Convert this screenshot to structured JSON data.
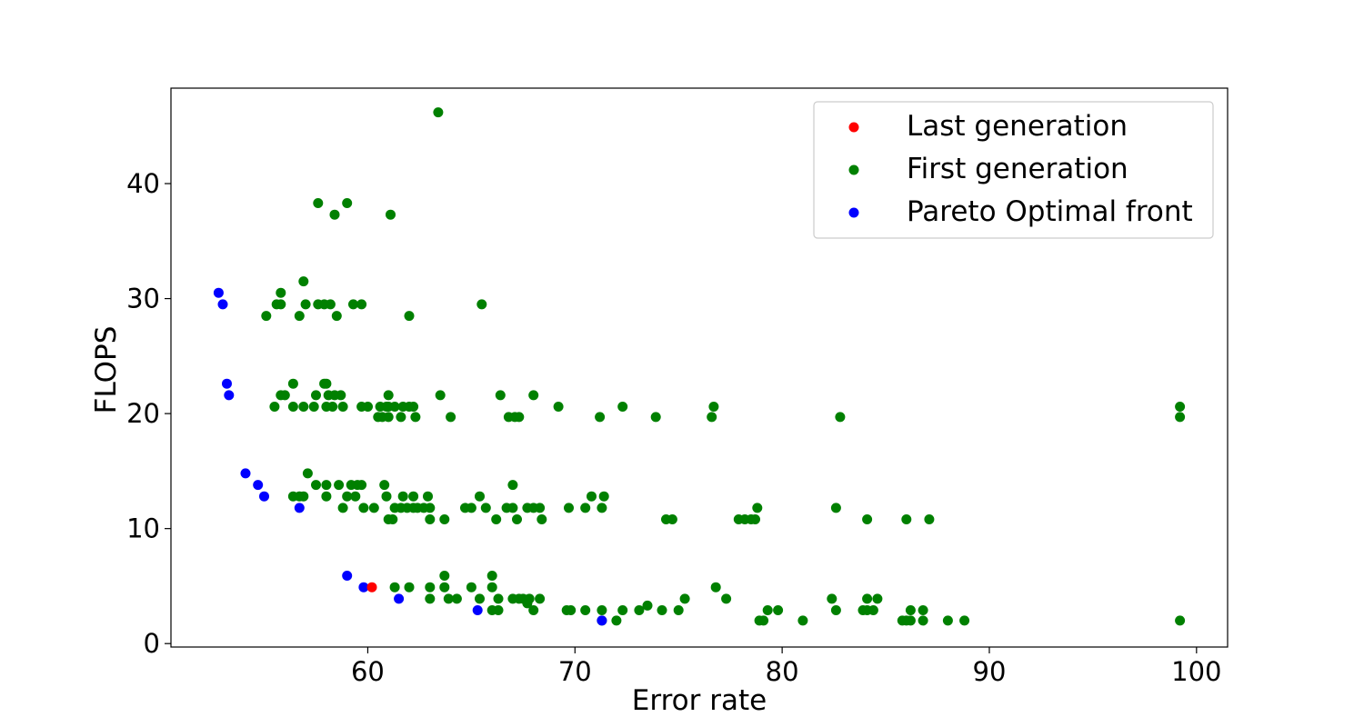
{
  "chart_data": {
    "type": "scatter",
    "title": "",
    "xlabel": "Error rate",
    "ylabel": "FLOPS",
    "xlim": [
      50.5,
      101.5
    ],
    "ylim": [
      -0.3,
      48.3
    ],
    "xticks": [
      60,
      70,
      80,
      90,
      100
    ],
    "yticks": [
      0,
      10,
      20,
      30,
      40
    ],
    "grid": false,
    "legend_position": "upper right",
    "series": [
      {
        "name": "Last generation",
        "color": "#ff0000",
        "points": [
          [
            60.2,
            4.9
          ]
        ]
      },
      {
        "name": "First generation",
        "color": "#008000",
        "points": [
          [
            63.4,
            46.2
          ],
          [
            57.6,
            38.3
          ],
          [
            59.0,
            38.3
          ],
          [
            58.4,
            37.3
          ],
          [
            61.1,
            37.3
          ],
          [
            56.9,
            31.5
          ],
          [
            55.8,
            30.5
          ],
          [
            55.6,
            29.5
          ],
          [
            55.8,
            29.5
          ],
          [
            57.0,
            29.5
          ],
          [
            57.6,
            29.5
          ],
          [
            57.9,
            29.5
          ],
          [
            58.2,
            29.5
          ],
          [
            59.3,
            29.5
          ],
          [
            59.7,
            29.5
          ],
          [
            65.5,
            29.5
          ],
          [
            55.1,
            28.5
          ],
          [
            56.7,
            28.5
          ],
          [
            58.5,
            28.5
          ],
          [
            62.0,
            28.5
          ],
          [
            56.4,
            22.6
          ],
          [
            57.9,
            22.6
          ],
          [
            58.0,
            22.6
          ],
          [
            55.8,
            21.6
          ],
          [
            56.0,
            21.6
          ],
          [
            57.5,
            21.6
          ],
          [
            58.1,
            21.6
          ],
          [
            58.4,
            21.6
          ],
          [
            58.7,
            21.6
          ],
          [
            61.0,
            21.6
          ],
          [
            63.5,
            21.6
          ],
          [
            66.4,
            21.6
          ],
          [
            68.0,
            21.6
          ],
          [
            55.5,
            20.6
          ],
          [
            56.4,
            20.6
          ],
          [
            56.9,
            20.6
          ],
          [
            57.4,
            20.6
          ],
          [
            58.0,
            20.6
          ],
          [
            58.3,
            20.6
          ],
          [
            58.8,
            20.6
          ],
          [
            59.7,
            20.6
          ],
          [
            60.0,
            20.6
          ],
          [
            60.6,
            20.6
          ],
          [
            60.9,
            20.6
          ],
          [
            61.0,
            20.6
          ],
          [
            61.3,
            20.6
          ],
          [
            61.7,
            20.6
          ],
          [
            62.0,
            20.6
          ],
          [
            62.2,
            20.6
          ],
          [
            69.2,
            20.6
          ],
          [
            72.3,
            20.6
          ],
          [
            76.7,
            20.6
          ],
          [
            99.2,
            20.6
          ],
          [
            60.5,
            19.7
          ],
          [
            60.7,
            19.7
          ],
          [
            61.0,
            19.7
          ],
          [
            61.6,
            19.7
          ],
          [
            62.3,
            19.7
          ],
          [
            64.0,
            19.7
          ],
          [
            66.8,
            19.7
          ],
          [
            67.1,
            19.7
          ],
          [
            67.3,
            19.7
          ],
          [
            71.2,
            19.7
          ],
          [
            73.9,
            19.7
          ],
          [
            76.6,
            19.7
          ],
          [
            82.8,
            19.7
          ],
          [
            99.2,
            19.7
          ],
          [
            57.1,
            14.8
          ],
          [
            57.5,
            13.8
          ],
          [
            58.0,
            13.8
          ],
          [
            58.6,
            13.8
          ],
          [
            59.2,
            13.8
          ],
          [
            59.5,
            13.8
          ],
          [
            59.7,
            13.8
          ],
          [
            60.8,
            13.8
          ],
          [
            67.0,
            13.8
          ],
          [
            56.4,
            12.8
          ],
          [
            56.7,
            12.8
          ],
          [
            56.9,
            12.8
          ],
          [
            58.0,
            12.8
          ],
          [
            59.0,
            12.8
          ],
          [
            59.4,
            12.8
          ],
          [
            60.9,
            12.8
          ],
          [
            61.7,
            12.8
          ],
          [
            62.2,
            12.8
          ],
          [
            62.9,
            12.8
          ],
          [
            65.4,
            12.8
          ],
          [
            70.8,
            12.8
          ],
          [
            71.4,
            12.8
          ],
          [
            58.8,
            11.8
          ],
          [
            59.8,
            11.8
          ],
          [
            60.3,
            11.8
          ],
          [
            61.3,
            11.8
          ],
          [
            61.6,
            11.8
          ],
          [
            61.9,
            11.8
          ],
          [
            62.2,
            11.8
          ],
          [
            62.4,
            11.8
          ],
          [
            62.7,
            11.8
          ],
          [
            63.0,
            11.8
          ],
          [
            64.7,
            11.8
          ],
          [
            65.0,
            11.8
          ],
          [
            65.7,
            11.8
          ],
          [
            66.7,
            11.8
          ],
          [
            67.0,
            11.8
          ],
          [
            67.7,
            11.8
          ],
          [
            68.0,
            11.8
          ],
          [
            68.3,
            11.8
          ],
          [
            69.7,
            11.8
          ],
          [
            70.5,
            11.8
          ],
          [
            71.3,
            11.8
          ],
          [
            78.8,
            11.8
          ],
          [
            82.6,
            11.8
          ],
          [
            61.0,
            10.8
          ],
          [
            61.2,
            10.8
          ],
          [
            63.0,
            10.8
          ],
          [
            63.7,
            10.8
          ],
          [
            66.2,
            10.8
          ],
          [
            67.2,
            10.8
          ],
          [
            68.4,
            10.8
          ],
          [
            74.4,
            10.8
          ],
          [
            74.7,
            10.8
          ],
          [
            77.9,
            10.8
          ],
          [
            78.2,
            10.8
          ],
          [
            78.5,
            10.8
          ],
          [
            78.7,
            10.8
          ],
          [
            84.1,
            10.8
          ],
          [
            86.0,
            10.8
          ],
          [
            87.1,
            10.8
          ],
          [
            63.7,
            5.9
          ],
          [
            66.0,
            5.9
          ],
          [
            61.3,
            4.9
          ],
          [
            62.0,
            4.9
          ],
          [
            63.0,
            4.9
          ],
          [
            63.7,
            4.9
          ],
          [
            65.0,
            4.9
          ],
          [
            66.0,
            4.9
          ],
          [
            76.8,
            4.9
          ],
          [
            63.0,
            3.9
          ],
          [
            63.9,
            3.9
          ],
          [
            64.3,
            3.9
          ],
          [
            65.4,
            3.9
          ],
          [
            66.3,
            3.9
          ],
          [
            67.0,
            3.9
          ],
          [
            67.3,
            3.9
          ],
          [
            67.5,
            3.9
          ],
          [
            67.8,
            3.9
          ],
          [
            68.3,
            3.9
          ],
          [
            75.3,
            3.9
          ],
          [
            77.3,
            3.9
          ],
          [
            82.4,
            3.9
          ],
          [
            84.1,
            3.9
          ],
          [
            84.6,
            3.9
          ],
          [
            67.7,
            3.5
          ],
          [
            73.5,
            3.3
          ],
          [
            66.0,
            2.9
          ],
          [
            66.3,
            2.9
          ],
          [
            68.0,
            2.9
          ],
          [
            69.6,
            2.9
          ],
          [
            69.8,
            2.9
          ],
          [
            70.5,
            2.9
          ],
          [
            71.3,
            2.9
          ],
          [
            72.3,
            2.9
          ],
          [
            73.1,
            2.9
          ],
          [
            74.2,
            2.9
          ],
          [
            75.0,
            2.9
          ],
          [
            79.3,
            2.9
          ],
          [
            79.8,
            2.9
          ],
          [
            82.6,
            2.9
          ],
          [
            83.9,
            2.9
          ],
          [
            84.1,
            2.9
          ],
          [
            84.4,
            2.9
          ],
          [
            86.2,
            2.9
          ],
          [
            86.8,
            2.9
          ],
          [
            71.3,
            2.0
          ],
          [
            72.0,
            2.0
          ],
          [
            78.9,
            2.0
          ],
          [
            79.1,
            2.0
          ],
          [
            81.0,
            2.0
          ],
          [
            85.8,
            2.0
          ],
          [
            86.0,
            2.0
          ],
          [
            86.2,
            2.0
          ],
          [
            86.8,
            2.0
          ],
          [
            88.0,
            2.0
          ],
          [
            88.8,
            2.0
          ],
          [
            99.2,
            2.0
          ]
        ]
      },
      {
        "name": "Pareto Optimal front",
        "color": "#0000ff",
        "points": [
          [
            52.8,
            30.5
          ],
          [
            53.0,
            29.5
          ],
          [
            53.2,
            22.6
          ],
          [
            53.3,
            21.6
          ],
          [
            54.1,
            14.8
          ],
          [
            54.7,
            13.8
          ],
          [
            55.0,
            12.8
          ],
          [
            56.7,
            11.8
          ],
          [
            59.0,
            5.9
          ],
          [
            59.8,
            4.9
          ],
          [
            61.5,
            3.9
          ],
          [
            65.3,
            2.9
          ],
          [
            71.3,
            2.0
          ]
        ]
      }
    ]
  }
}
